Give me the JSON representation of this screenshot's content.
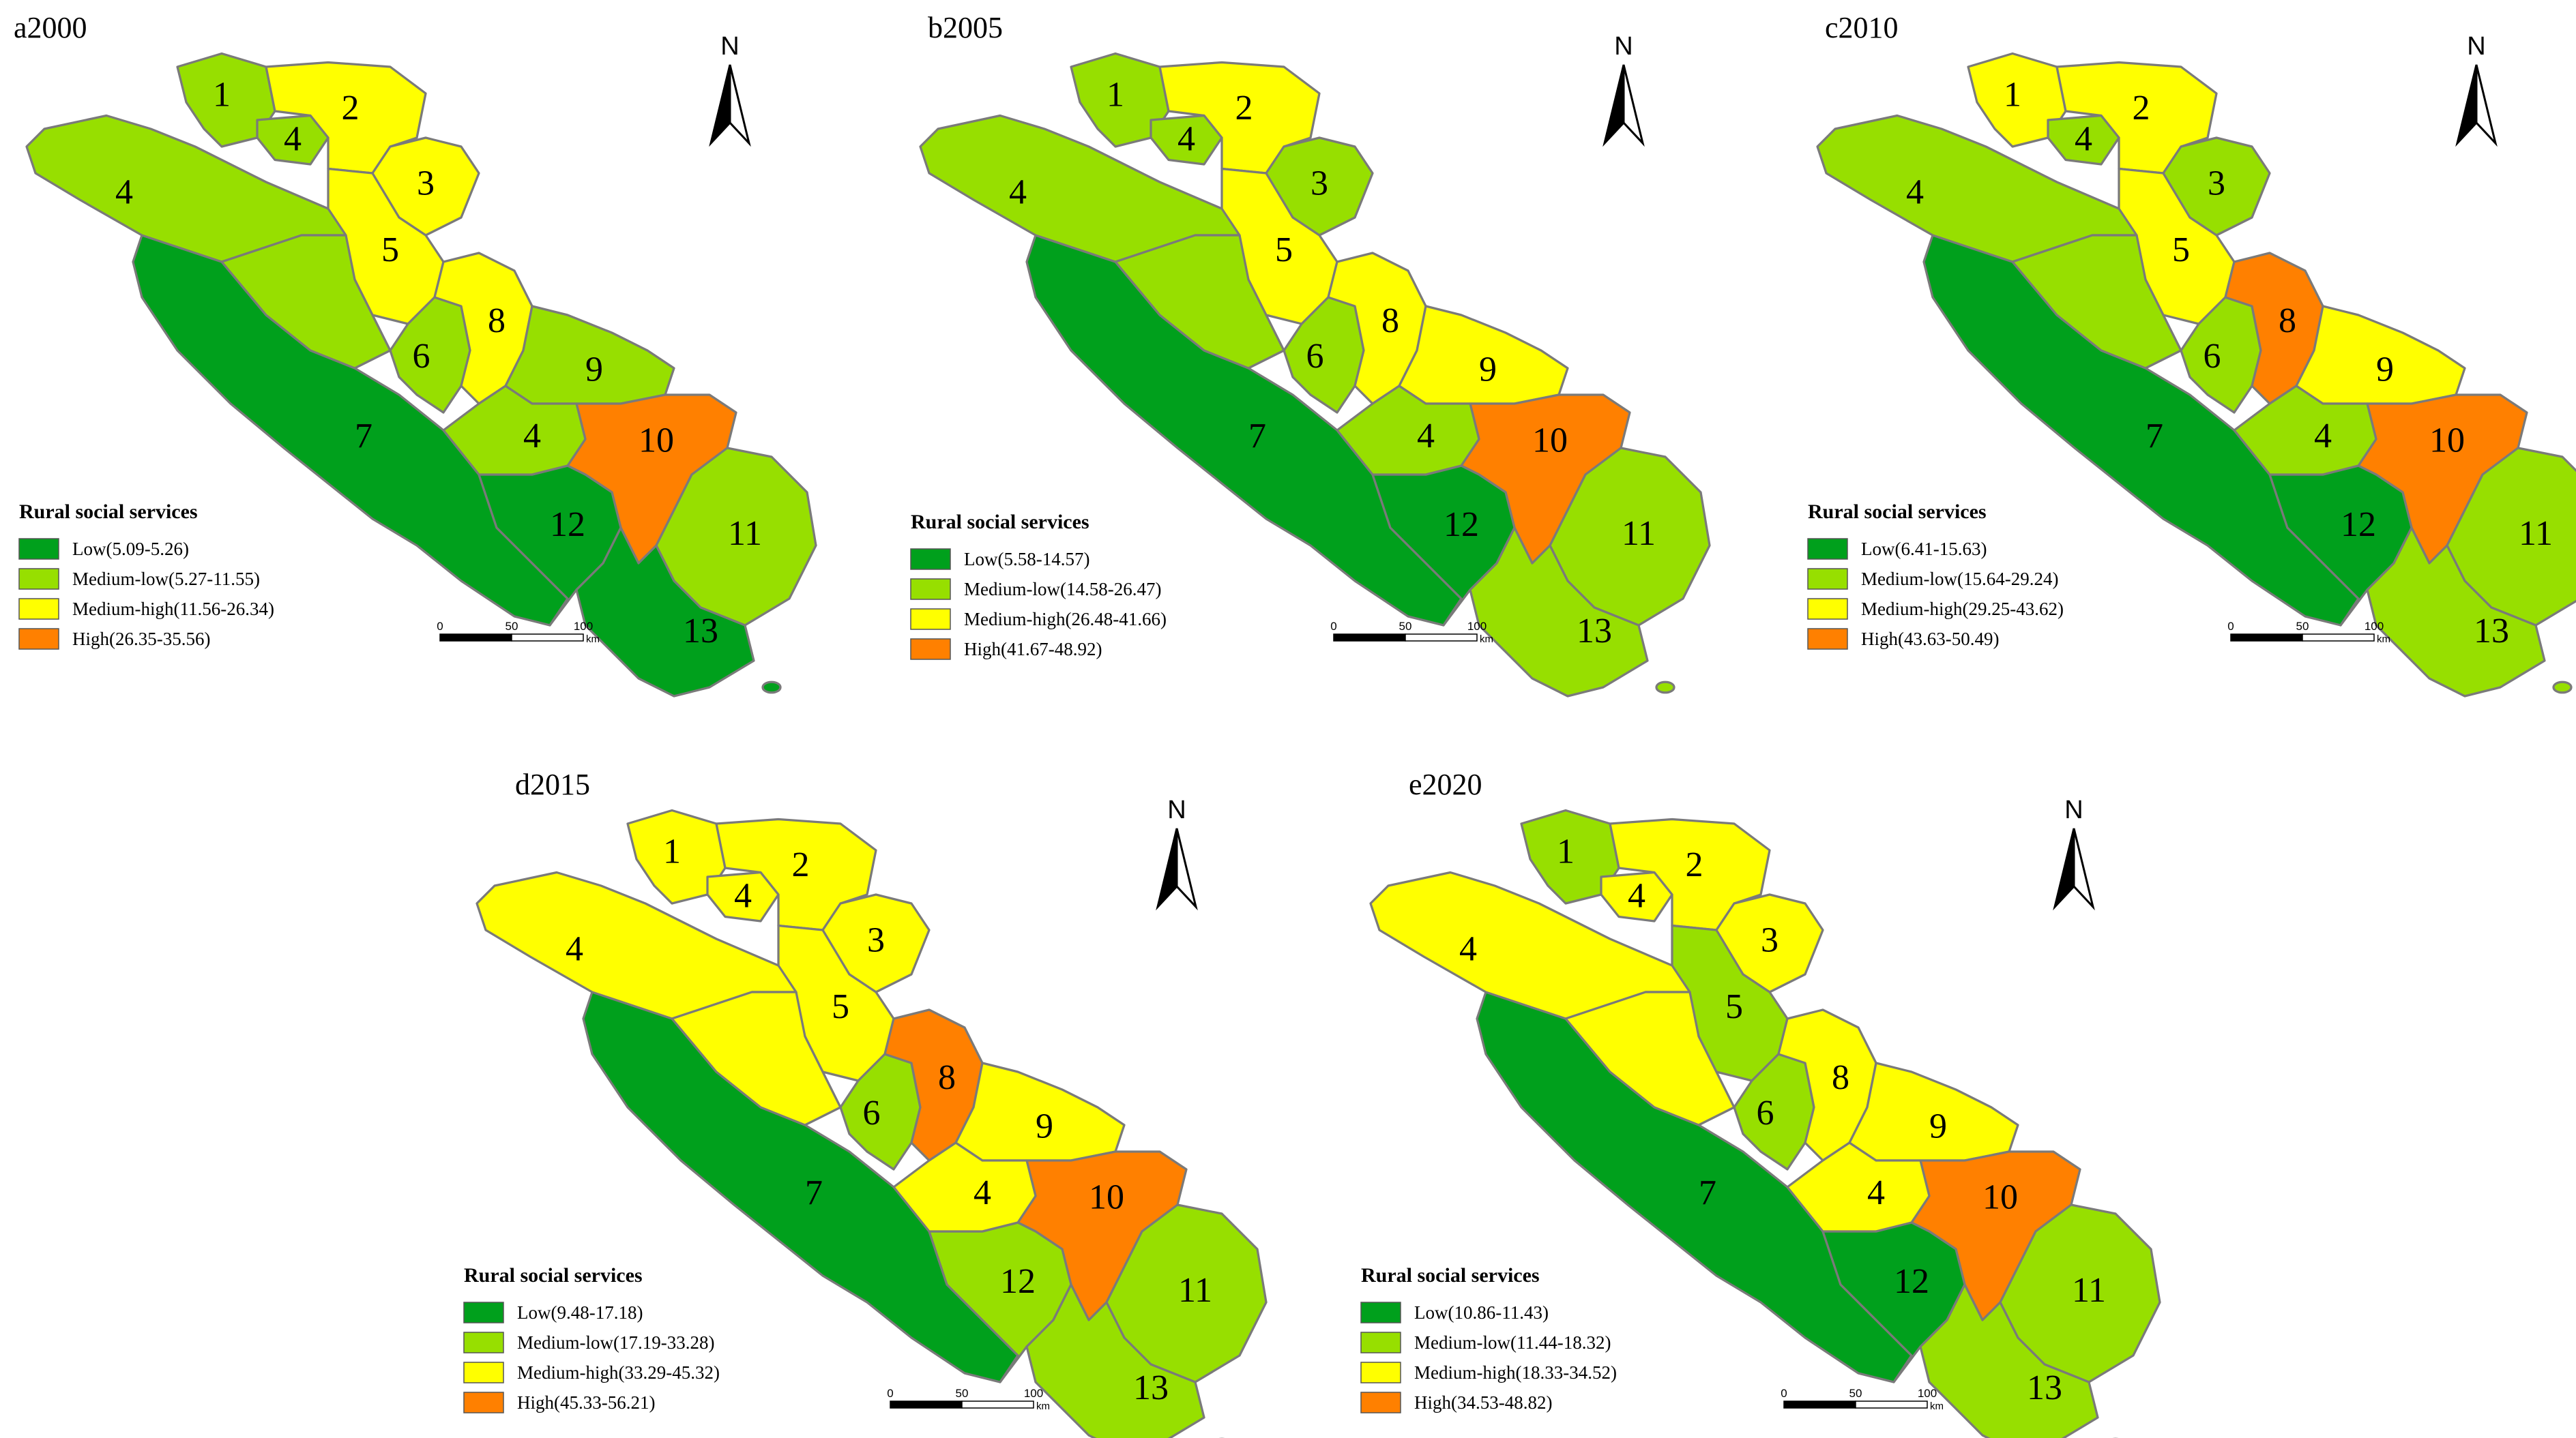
{
  "colors": {
    "Low": "#00a01c",
    "Medium-low": "#97df00",
    "Medium-high": "#ffff00",
    "High": "#ff8000"
  },
  "legend_title": "Rural social services",
  "north_label": "N",
  "scale": {
    "ticks": [
      "0",
      "50",
      "100"
    ],
    "unit": "km"
  },
  "panels": [
    {
      "title": "a2000",
      "legend": [
        {
          "class": "Low",
          "label": "Low(5.09-5.26)"
        },
        {
          "class": "Medium-low",
          "label": "Medium-low(5.27-11.55)"
        },
        {
          "class": "Medium-high",
          "label": "Medium-high(11.56-26.34)"
        },
        {
          "class": "High",
          "label": "High(26.35-35.56)"
        }
      ],
      "regions": {
        "1": "Medium-low",
        "2": "Medium-high",
        "3": "Medium-high",
        "4a": "Medium-low",
        "4b": "Medium-low",
        "4c": "Medium-low",
        "5": "Medium-high",
        "6": "Medium-low",
        "7": "Low",
        "8": "Medium-high",
        "9": "Medium-low",
        "10": "High",
        "11": "Medium-low",
        "12": "Low",
        "13": "Low"
      }
    },
    {
      "title": "b2005",
      "legend": [
        {
          "class": "Low",
          "label": "Low(5.58-14.57)"
        },
        {
          "class": "Medium-low",
          "label": "Medium-low(14.58-26.47)"
        },
        {
          "class": "Medium-high",
          "label": "Medium-high(26.48-41.66)"
        },
        {
          "class": "High",
          "label": "High(41.67-48.92)"
        }
      ],
      "regions": {
        "1": "Medium-low",
        "2": "Medium-high",
        "3": "Medium-low",
        "4a": "Medium-low",
        "4b": "Medium-low",
        "4c": "Medium-low",
        "5": "Medium-high",
        "6": "Medium-low",
        "7": "Low",
        "8": "Medium-high",
        "9": "Medium-high",
        "10": "High",
        "11": "Medium-low",
        "12": "Low",
        "13": "Medium-low"
      }
    },
    {
      "title": "c2010",
      "legend": [
        {
          "class": "Low",
          "label": "Low(6.41-15.63)"
        },
        {
          "class": "Medium-low",
          "label": "Medium-low(15.64-29.24)"
        },
        {
          "class": "Medium-high",
          "label": "Medium-high(29.25-43.62)"
        },
        {
          "class": "High",
          "label": "High(43.63-50.49)"
        }
      ],
      "regions": {
        "1": "Medium-high",
        "2": "Medium-high",
        "3": "Medium-low",
        "4a": "Medium-low",
        "4b": "Medium-low",
        "4c": "Medium-low",
        "5": "Medium-high",
        "6": "Medium-low",
        "7": "Low",
        "8": "High",
        "9": "Medium-high",
        "10": "High",
        "11": "Medium-low",
        "12": "Low",
        "13": "Medium-low"
      }
    },
    {
      "title": "d2015",
      "legend": [
        {
          "class": "Low",
          "label": "Low(9.48-17.18)"
        },
        {
          "class": "Medium-low",
          "label": "Medium-low(17.19-33.28)"
        },
        {
          "class": "Medium-high",
          "label": "Medium-high(33.29-45.32)"
        },
        {
          "class": "High",
          "label": "High(45.33-56.21)"
        }
      ],
      "regions": {
        "1": "Medium-high",
        "2": "Medium-high",
        "3": "Medium-high",
        "4a": "Medium-high",
        "4b": "Medium-high",
        "4c": "Medium-high",
        "5": "Medium-high",
        "6": "Medium-low",
        "7": "Low",
        "8": "High",
        "9": "Medium-high",
        "10": "High",
        "11": "Medium-low",
        "12": "Medium-low",
        "13": "Medium-low"
      }
    },
    {
      "title": "e2020",
      "legend": [
        {
          "class": "Low",
          "label": "Low(10.86-11.43)"
        },
        {
          "class": "Medium-low",
          "label": "Medium-low(11.44-18.32)"
        },
        {
          "class": "Medium-high",
          "label": "Medium-high(18.33-34.52)"
        },
        {
          "class": "High",
          "label": "High(34.53-48.82)"
        }
      ],
      "regions": {
        "1": "Medium-low",
        "2": "Medium-high",
        "3": "Medium-high",
        "4a": "Medium-high",
        "4b": "Medium-high",
        "4c": "Medium-high",
        "5": "Medium-low",
        "6": "Medium-low",
        "7": "Low",
        "8": "Medium-high",
        "9": "Medium-high",
        "10": "High",
        "11": "Medium-low",
        "12": "Low",
        "13": "Medium-low"
      }
    }
  ]
}
